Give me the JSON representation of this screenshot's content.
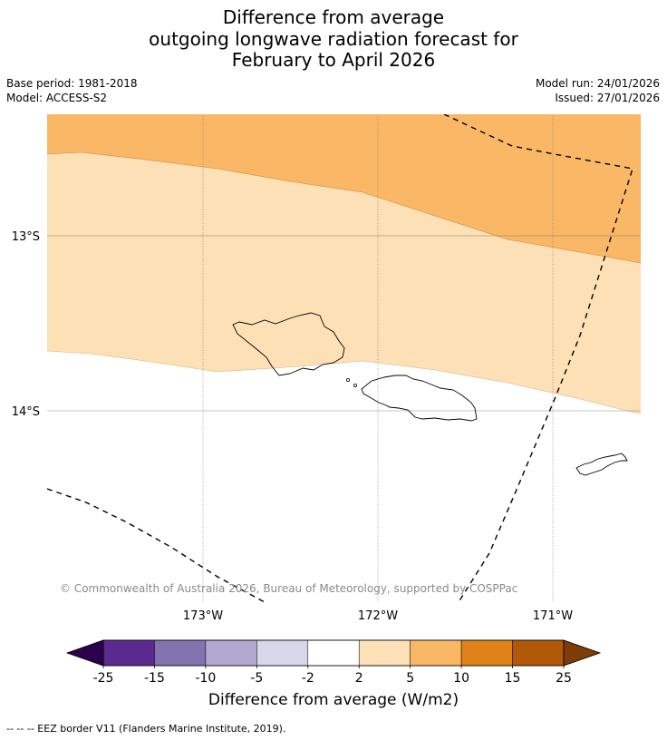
{
  "title": {
    "line1": "Difference from average",
    "line2": "outgoing longwave radiation forecast for",
    "line3": "February to April 2026"
  },
  "meta": {
    "base_period": "Base period: 1981-2018",
    "model": "Model: ACCESS-S2",
    "model_run": "Model run: 24/01/2026",
    "issued": "Issued: 27/01/2026"
  },
  "map": {
    "lat_labels": [
      "13°S",
      "14°S"
    ],
    "lon_labels": [
      "173°W",
      "172°W",
      "171°W"
    ],
    "copyright": "© Commonwealth of Australia 2026, Bureau of Meteorology, supported by COSPPac"
  },
  "colorbar": {
    "label": "Difference from average (W/m2)",
    "ticks": [
      "-25",
      "-15",
      "-10",
      "-5",
      "-2",
      "2",
      "5",
      "10",
      "15",
      "25"
    ],
    "colors": [
      "#5b2a90",
      "#8373b0",
      "#b1a9d2",
      "#d8d8ea",
      "#ffffff",
      "#fde0b6",
      "#fab866",
      "#df8217",
      "#b25809"
    ],
    "under_color": "#2d004b",
    "over_color": "#7f3b08"
  },
  "legend": {
    "eez": "--  --  -- EEZ border V11 (Flanders Marine Institute, 2019)."
  }
}
